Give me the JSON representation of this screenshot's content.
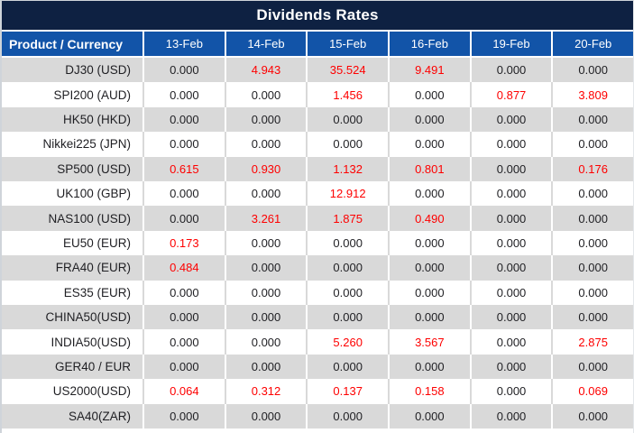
{
  "title": "Dividends Rates",
  "colors": {
    "title_bg": "#0e2142",
    "header_bg": "#1254a8",
    "row_alt_bg": "#d9d9d9",
    "row_bg": "#ffffff",
    "header_text": "#ffffff",
    "text_dark": "#1f1f23",
    "text_red": "#fe0000"
  },
  "chart_data": {
    "type": "table",
    "title": "Dividends Rates",
    "columns": [
      "Product / Currency",
      "13-Feb",
      "14-Feb",
      "15-Feb",
      "16-Feb",
      "19-Feb",
      "20-Feb"
    ],
    "rows": [
      {
        "product": "DJ30 (USD)",
        "values": [
          "0.000",
          "4.943",
          "35.524",
          "9.491",
          "0.000",
          "0.000"
        ],
        "red": [
          false,
          true,
          true,
          true,
          false,
          false
        ]
      },
      {
        "product": "SPI200 (AUD)",
        "values": [
          "0.000",
          "0.000",
          "1.456",
          "0.000",
          "0.877",
          "3.809"
        ],
        "red": [
          false,
          false,
          true,
          false,
          true,
          true
        ]
      },
      {
        "product": "HK50 (HKD)",
        "values": [
          "0.000",
          "0.000",
          "0.000",
          "0.000",
          "0.000",
          "0.000"
        ],
        "red": [
          false,
          false,
          false,
          false,
          false,
          false
        ]
      },
      {
        "product": "Nikkei225 (JPN)",
        "values": [
          "0.000",
          "0.000",
          "0.000",
          "0.000",
          "0.000",
          "0.000"
        ],
        "red": [
          false,
          false,
          false,
          false,
          false,
          false
        ]
      },
      {
        "product": "SP500 (USD)",
        "values": [
          "0.615",
          "0.930",
          "1.132",
          "0.801",
          "0.000",
          "0.176"
        ],
        "red": [
          true,
          true,
          true,
          true,
          false,
          true
        ]
      },
      {
        "product": "UK100 (GBP)",
        "values": [
          "0.000",
          "0.000",
          "12.912",
          "0.000",
          "0.000",
          "0.000"
        ],
        "red": [
          false,
          false,
          true,
          false,
          false,
          false
        ]
      },
      {
        "product": "NAS100 (USD)",
        "values": [
          "0.000",
          "3.261",
          "1.875",
          "0.490",
          "0.000",
          "0.000"
        ],
        "red": [
          false,
          true,
          true,
          true,
          false,
          false
        ]
      },
      {
        "product": "EU50 (EUR)",
        "values": [
          "0.173",
          "0.000",
          "0.000",
          "0.000",
          "0.000",
          "0.000"
        ],
        "red": [
          true,
          false,
          false,
          false,
          false,
          false
        ]
      },
      {
        "product": "FRA40 (EUR)",
        "values": [
          "0.484",
          "0.000",
          "0.000",
          "0.000",
          "0.000",
          "0.000"
        ],
        "red": [
          true,
          false,
          false,
          false,
          false,
          false
        ]
      },
      {
        "product": "ES35 (EUR)",
        "values": [
          "0.000",
          "0.000",
          "0.000",
          "0.000",
          "0.000",
          "0.000"
        ],
        "red": [
          false,
          false,
          false,
          false,
          false,
          false
        ]
      },
      {
        "product": "CHINA50(USD)",
        "values": [
          "0.000",
          "0.000",
          "0.000",
          "0.000",
          "0.000",
          "0.000"
        ],
        "red": [
          false,
          false,
          false,
          false,
          false,
          false
        ]
      },
      {
        "product": "INDIA50(USD)",
        "values": [
          "0.000",
          "0.000",
          "5.260",
          "3.567",
          "0.000",
          "2.875"
        ],
        "red": [
          false,
          false,
          true,
          true,
          false,
          true
        ]
      },
      {
        "product": "GER40 / EUR",
        "values": [
          "0.000",
          "0.000",
          "0.000",
          "0.000",
          "0.000",
          "0.000"
        ],
        "red": [
          false,
          false,
          false,
          false,
          false,
          false
        ]
      },
      {
        "product": "US2000(USD)",
        "values": [
          "0.064",
          "0.312",
          "0.137",
          "0.158",
          "0.000",
          "0.069"
        ],
        "red": [
          true,
          true,
          true,
          true,
          false,
          true
        ]
      },
      {
        "product": "SA40(ZAR)",
        "values": [
          "0.000",
          "0.000",
          "0.000",
          "0.000",
          "0.000",
          "0.000"
        ],
        "red": [
          false,
          false,
          false,
          false,
          false,
          false
        ]
      }
    ]
  }
}
